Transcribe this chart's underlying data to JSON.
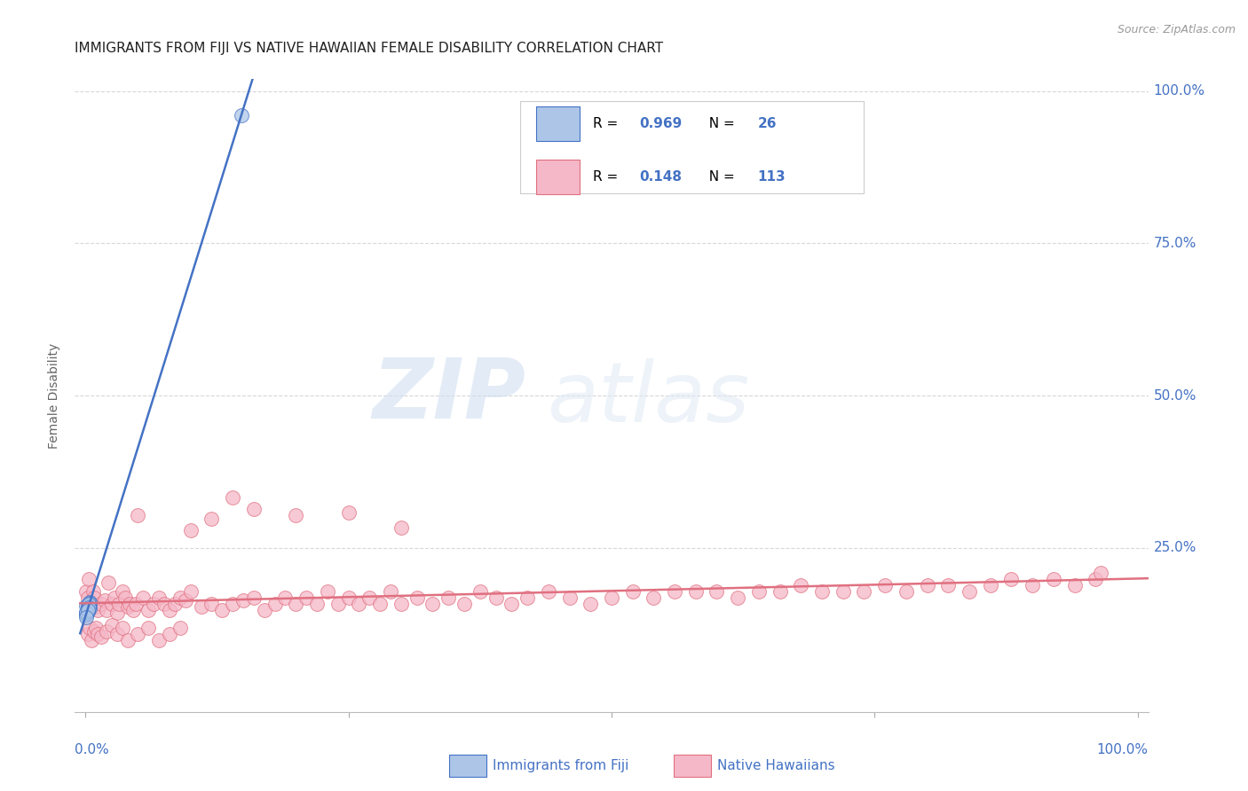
{
  "title": "IMMIGRANTS FROM FIJI VS NATIVE HAWAIIAN FEMALE DISABILITY CORRELATION CHART",
  "source": "Source: ZipAtlas.com",
  "ylabel": "Female Disability",
  "legend_label1": "Immigrants from Fiji",
  "legend_label2": "Native Hawaiians",
  "R1": 0.969,
  "N1": 26,
  "R2": 0.148,
  "N2": 113,
  "fiji_color": "#adc6e8",
  "native_color": "#f5b8c8",
  "fiji_line_color": "#4472c4",
  "native_line_color": "#e07080",
  "fiji_scatter_x": [
    0.001,
    0.002,
    0.003,
    0.001,
    0.004,
    0.002,
    0.003,
    0.004,
    0.002,
    0.001,
    0.003,
    0.004,
    0.002,
    0.001,
    0.003,
    0.002,
    0.004,
    0.003,
    0.001,
    0.003,
    0.002,
    0.003,
    0.001,
    0.002,
    0.001,
    0.148
  ],
  "fiji_scatter_y": [
    0.155,
    0.148,
    0.152,
    0.142,
    0.15,
    0.153,
    0.156,
    0.161,
    0.145,
    0.14,
    0.151,
    0.157,
    0.149,
    0.143,
    0.153,
    0.148,
    0.159,
    0.154,
    0.141,
    0.157,
    0.15,
    0.152,
    0.145,
    0.148,
    0.136,
    0.96
  ],
  "native_scatter_x": [
    0.001,
    0.002,
    0.003,
    0.005,
    0.007,
    0.008,
    0.01,
    0.012,
    0.015,
    0.018,
    0.02,
    0.022,
    0.025,
    0.028,
    0.03,
    0.032,
    0.035,
    0.038,
    0.04,
    0.042,
    0.045,
    0.048,
    0.05,
    0.055,
    0.06,
    0.065,
    0.07,
    0.075,
    0.08,
    0.085,
    0.09,
    0.095,
    0.1,
    0.11,
    0.12,
    0.13,
    0.14,
    0.15,
    0.16,
    0.17,
    0.18,
    0.19,
    0.2,
    0.21,
    0.22,
    0.23,
    0.24,
    0.25,
    0.26,
    0.27,
    0.28,
    0.29,
    0.3,
    0.315,
    0.33,
    0.345,
    0.36,
    0.375,
    0.39,
    0.405,
    0.42,
    0.44,
    0.46,
    0.48,
    0.5,
    0.52,
    0.54,
    0.56,
    0.58,
    0.6,
    0.62,
    0.64,
    0.66,
    0.68,
    0.7,
    0.72,
    0.74,
    0.76,
    0.78,
    0.8,
    0.82,
    0.84,
    0.86,
    0.88,
    0.9,
    0.92,
    0.94,
    0.96,
    0.965,
    0.002,
    0.004,
    0.006,
    0.008,
    0.01,
    0.012,
    0.015,
    0.02,
    0.025,
    0.03,
    0.035,
    0.04,
    0.05,
    0.06,
    0.07,
    0.08,
    0.09,
    0.1,
    0.12,
    0.14,
    0.16,
    0.2,
    0.25,
    0.3
  ],
  "native_scatter_y": [
    0.178,
    0.168,
    0.198,
    0.158,
    0.178,
    0.168,
    0.153,
    0.148,
    0.158,
    0.163,
    0.148,
    0.193,
    0.158,
    0.168,
    0.143,
    0.158,
    0.178,
    0.168,
    0.153,
    0.158,
    0.148,
    0.158,
    0.303,
    0.168,
    0.148,
    0.158,
    0.168,
    0.158,
    0.148,
    0.158,
    0.168,
    0.163,
    0.178,
    0.153,
    0.158,
    0.148,
    0.158,
    0.163,
    0.168,
    0.148,
    0.158,
    0.168,
    0.158,
    0.168,
    0.158,
    0.178,
    0.158,
    0.168,
    0.158,
    0.168,
    0.158,
    0.178,
    0.158,
    0.168,
    0.158,
    0.168,
    0.158,
    0.178,
    0.168,
    0.158,
    0.168,
    0.178,
    0.168,
    0.158,
    0.168,
    0.178,
    0.168,
    0.178,
    0.178,
    0.178,
    0.168,
    0.178,
    0.178,
    0.188,
    0.178,
    0.178,
    0.178,
    0.188,
    0.178,
    0.188,
    0.188,
    0.178,
    0.188,
    0.198,
    0.188,
    0.198,
    0.188,
    0.198,
    0.208,
    0.108,
    0.118,
    0.098,
    0.113,
    0.118,
    0.108,
    0.103,
    0.113,
    0.123,
    0.108,
    0.118,
    0.098,
    0.108,
    0.118,
    0.098,
    0.108,
    0.118,
    0.278,
    0.298,
    0.333,
    0.313,
    0.303,
    0.308,
    0.283
  ],
  "watermark_zip": "ZIP",
  "watermark_atlas": "atlas",
  "background_color": "#ffffff",
  "grid_color": "#d8d8d8",
  "title_color": "#222222",
  "axis_label_color": "#4472c4",
  "tick_label_color": "#4472c4"
}
